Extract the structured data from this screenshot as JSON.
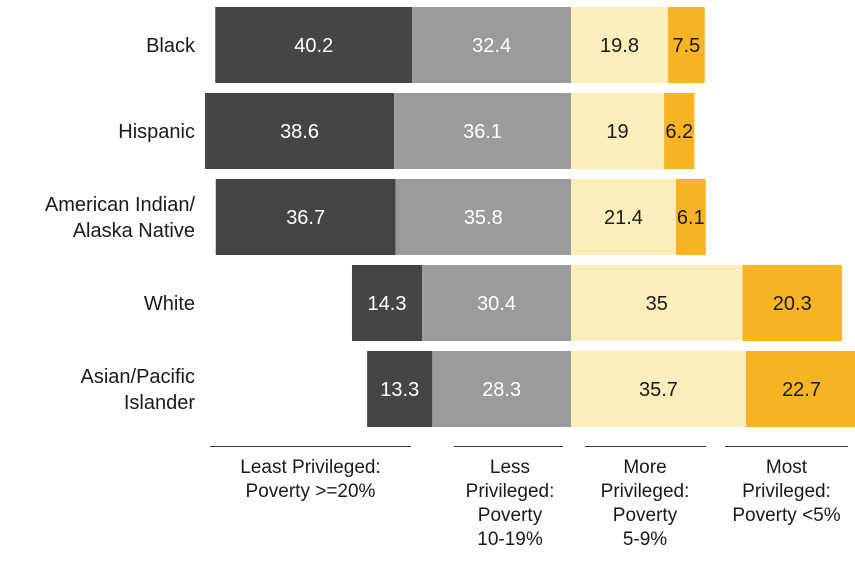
{
  "chart_data": {
    "type": "bar",
    "orientation": "horizontal",
    "stacked": true,
    "diverging": true,
    "categories": [
      "Black",
      "Hispanic",
      "American Indian/\nAlaska Native",
      "White",
      "Asian/Pacific\nIslander"
    ],
    "series": [
      {
        "name": "Least Privileged:\nPoverty >=20%",
        "values": [
          40.2,
          38.6,
          36.7,
          14.3,
          13.3
        ],
        "color": "#454545",
        "text_color": "#ffffff"
      },
      {
        "name": "Less\nPrivileged:\nPoverty\n10-19%",
        "values": [
          32.4,
          36.1,
          35.8,
          30.4,
          28.3
        ],
        "color": "#9b9b9b",
        "text_color": "#ffffff"
      },
      {
        "name": "More\nPrivileged:\nPoverty\n5-9%",
        "values": [
          19.8,
          19.0,
          21.4,
          35.0,
          35.7
        ],
        "color": "#fdefbb",
        "text_color": "#1a1a1a"
      },
      {
        "name": "Most\nPrivileged:\nPoverty <5%",
        "values": [
          7.5,
          6.2,
          6.1,
          20.3,
          22.7
        ],
        "color": "#f9b424",
        "text_color": "#1a1a1a"
      }
    ],
    "grid": false,
    "legend": "bottom"
  }
}
